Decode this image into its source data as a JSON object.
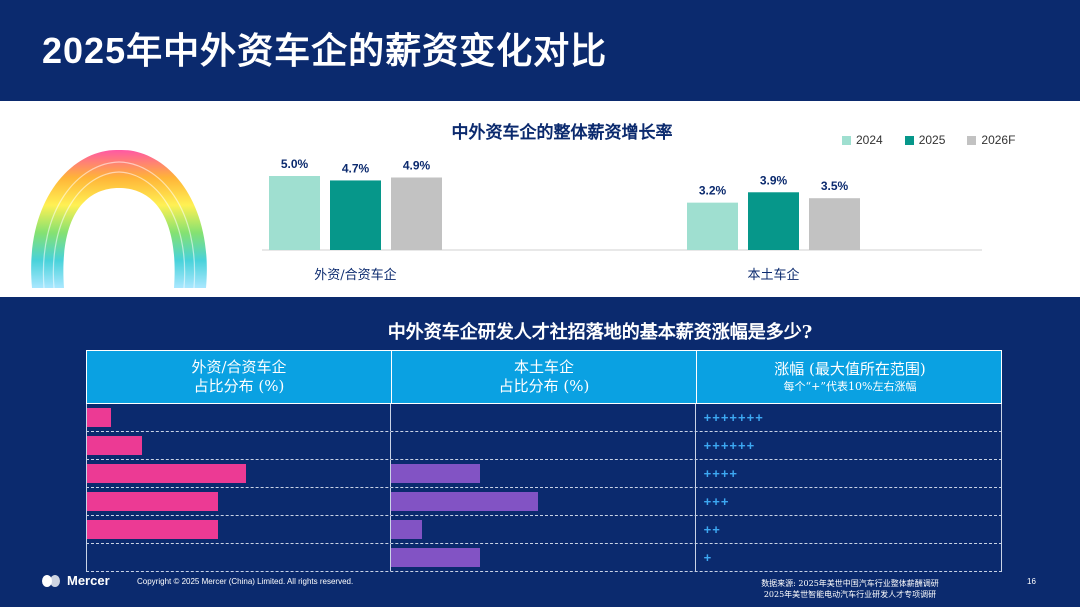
{
  "title": "2025年中外资车企的薪资变化对比",
  "chart_data": {
    "type": "bar",
    "title": "中外资车企的整体薪资增长率",
    "categories": [
      "外资/合资车企",
      "本土车企"
    ],
    "series": [
      {
        "name": "2024",
        "values": [
          5.0,
          3.2
        ],
        "labels": [
          "5.0%",
          "3.2%"
        ]
      },
      {
        "name": "2025",
        "values": [
          4.7,
          3.9
        ],
        "labels": [
          "4.7%",
          "3.9%"
        ]
      },
      {
        "name": "2026F",
        "values": [
          4.9,
          3.5
        ],
        "labels": [
          "4.9%",
          "3.5%"
        ]
      }
    ],
    "colors": [
      "#9fdfd0",
      "#06978a",
      "#c2c2c2"
    ],
    "ylim": [
      0,
      6
    ],
    "legend": "top-right"
  },
  "table": {
    "question": "中外资车企研发人才社招落地的基本薪资涨幅是多少?",
    "headers": [
      {
        "line1": "外资/合资车企",
        "line2": "占比分布 (%)"
      },
      {
        "line1": "本土车企",
        "line2": "占比分布 (%)"
      },
      {
        "line1": "涨幅 (最大值所在范围)",
        "line2": "每个“+”代表10%左右涨幅"
      }
    ],
    "rows": [
      {
        "foreign_share": 8,
        "local_share": 0,
        "increase": "+++++++"
      },
      {
        "foreign_share": 18,
        "local_share": 0,
        "increase": "++++++"
      },
      {
        "foreign_share": 52,
        "local_share": 29,
        "increase": "++++"
      },
      {
        "foreign_share": 43,
        "local_share": 48,
        "increase": "+++"
      },
      {
        "foreign_share": 43,
        "local_share": 10,
        "increase": "++"
      },
      {
        "foreign_share": 0,
        "local_share": 29,
        "increase": "+"
      }
    ],
    "colors": {
      "foreign": "#ec3a94",
      "local": "#8253c4",
      "plus": "#3da8f2"
    }
  },
  "footer": {
    "logo": "Mercer",
    "copyright": "Copyright © 2025 Mercer (China) Limited. All rights reserved.",
    "source_line1": "数据来源: 2025年美世中国汽车行业整体薪酬调研",
    "source_line2": "2025年美世智能电动汽车行业研发人才专项调研",
    "page": "16"
  }
}
